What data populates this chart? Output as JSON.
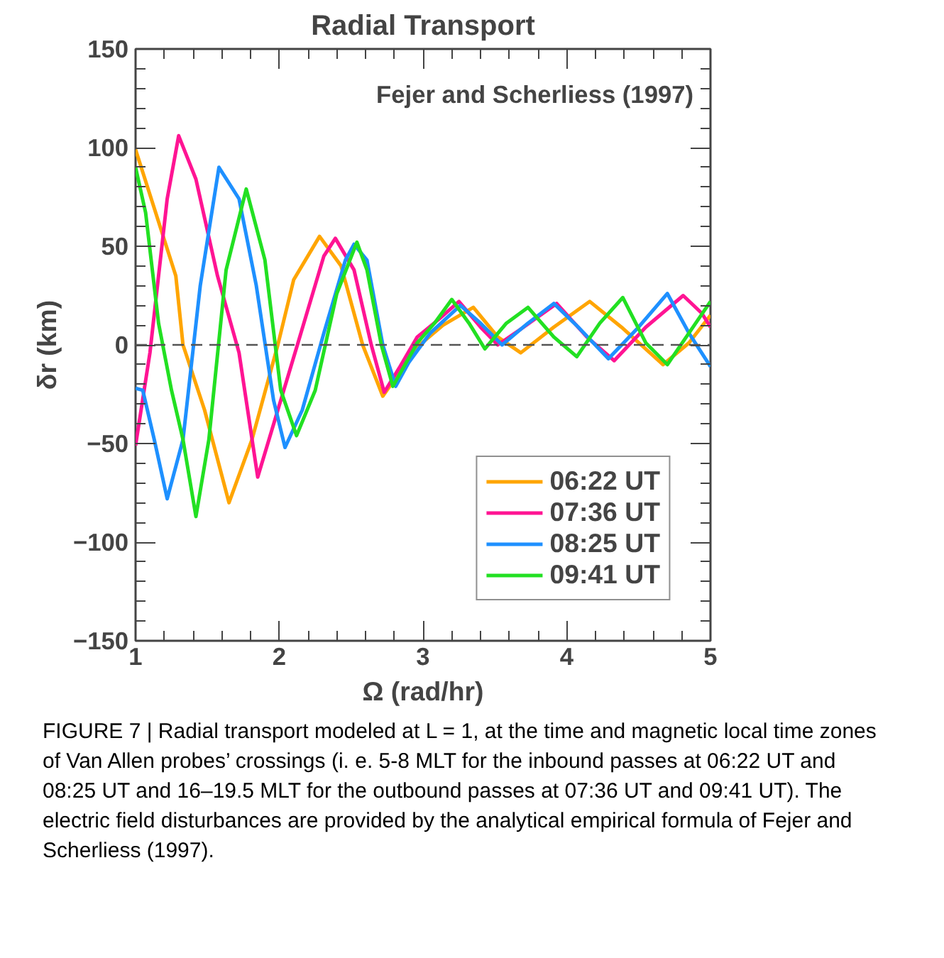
{
  "chart_data": {
    "type": "line",
    "title": "Radial Transport",
    "xlabel": "Ω (rad/hr)",
    "ylabel": "δr (km)",
    "xlim": [
      1,
      5
    ],
    "ylim": [
      -150,
      150
    ],
    "xticks": [
      1,
      2,
      3,
      4,
      5
    ],
    "yticks": [
      -150,
      -100,
      -50,
      0,
      50,
      100,
      150
    ],
    "grid": false,
    "legend": "bottom right",
    "line_style": "solid",
    "ref_lines": [
      {
        "axis": "y",
        "value": 0,
        "color": "#555555",
        "line_style": "dashed"
      }
    ],
    "annotations": [
      "Fejer and Scherliess (1997)",
      "FIGURE 7 | Radial transport modeled at L = 1, at the time and magnetic local time zones of Van Allen probes’ crossings (i. e. 5-8 MLT for the inbound passes at 06:22 UT and 08:25 UT and 16–19.5 MLT for the outbound passes at 07:36 UT and 09:41 UT). The electric field disturbances are provided by the analytical empirical formula of Fejer and Scherliess (1997)."
    ],
    "series": [
      {
        "name": "06:22 UT",
        "color": "#ffa500",
        "x": [
          1,
          1.28,
          1.33,
          1.48,
          1.65,
          1.81,
          1.99,
          2.1,
          2.28,
          2.43,
          2.58,
          2.72,
          2.96,
          3.14,
          3.35,
          3.52,
          3.68,
          3.91,
          4.16,
          4.38,
          4.67,
          4.85,
          5
        ],
        "values": [
          99,
          35,
          0,
          -33,
          -80,
          -48,
          0,
          33,
          55,
          40,
          0,
          -26,
          -1,
          10,
          19,
          4,
          -4,
          9,
          22,
          9,
          -10,
          1,
          15
        ]
      },
      {
        "name": "07:36 UT",
        "color": "#ff1493",
        "x": [
          1,
          1.1,
          1.22,
          1.3,
          1.42,
          1.57,
          1.72,
          1.85,
          1.99,
          2.13,
          2.31,
          2.39,
          2.52,
          2.64,
          2.73,
          2.84,
          2.96,
          3.11,
          3.25,
          3.4,
          3.52,
          3.7,
          3.93,
          4.14,
          4.33,
          4.55,
          4.81,
          4.94,
          5
        ],
        "values": [
          -51,
          -4,
          74,
          106,
          84,
          35,
          -4,
          -67,
          -33,
          1,
          45,
          54,
          38,
          0,
          -24,
          -11,
          4,
          13,
          22,
          9,
          0,
          9,
          21,
          4,
          -8,
          9,
          25,
          16,
          9
        ]
      },
      {
        "name": "08:25 UT",
        "color": "#1e90ff",
        "x": [
          1,
          1.05,
          1.13,
          1.22,
          1.33,
          1.45,
          1.58,
          1.72,
          1.84,
          1.96,
          2.04,
          2.16,
          2.31,
          2.46,
          2.52,
          2.61,
          2.72,
          2.81,
          2.9,
          3.05,
          3.26,
          3.4,
          3.55,
          3.73,
          3.91,
          4.08,
          4.29,
          4.5,
          4.7,
          4.85,
          5
        ],
        "values": [
          -22,
          -23,
          -48,
          -78,
          -48,
          30,
          90,
          74,
          30,
          -28,
          -52,
          -33,
          6,
          43,
          51,
          43,
          0,
          -21,
          -9,
          6,
          20,
          11,
          0,
          11,
          21,
          9,
          -7,
          9,
          26,
          6,
          -11
        ]
      },
      {
        "name": "09:41 UT",
        "color": "#22e022",
        "x": [
          1,
          1.07,
          1.16,
          1.25,
          1.33,
          1.42,
          1.51,
          1.63,
          1.77,
          1.9,
          2.01,
          2.12,
          2.25,
          2.4,
          2.54,
          2.61,
          2.71,
          2.79,
          2.96,
          3.08,
          3.2,
          3.32,
          3.43,
          3.58,
          3.73,
          3.91,
          4.07,
          4.23,
          4.39,
          4.55,
          4.7,
          4.85,
          5
        ],
        "values": [
          90,
          67,
          11,
          -23,
          -48,
          -87,
          -48,
          38,
          79,
          43,
          -23,
          -46,
          -23,
          26,
          52,
          38,
          0,
          -21,
          1,
          11,
          23,
          11,
          -2,
          11,
          19,
          4,
          -6,
          11,
          24,
          1,
          -10,
          6,
          22
        ]
      }
    ]
  }
}
